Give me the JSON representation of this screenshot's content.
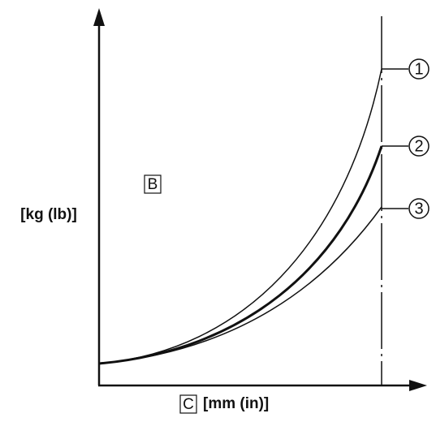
{
  "y_axis": {
    "letter": "B",
    "unit": "[kg (lb)]"
  },
  "x_axis": {
    "letter": "C",
    "unit": "[mm (in)]"
  },
  "curves": [
    {
      "label": "1"
    },
    {
      "label": "2"
    },
    {
      "label": "3"
    }
  ]
}
